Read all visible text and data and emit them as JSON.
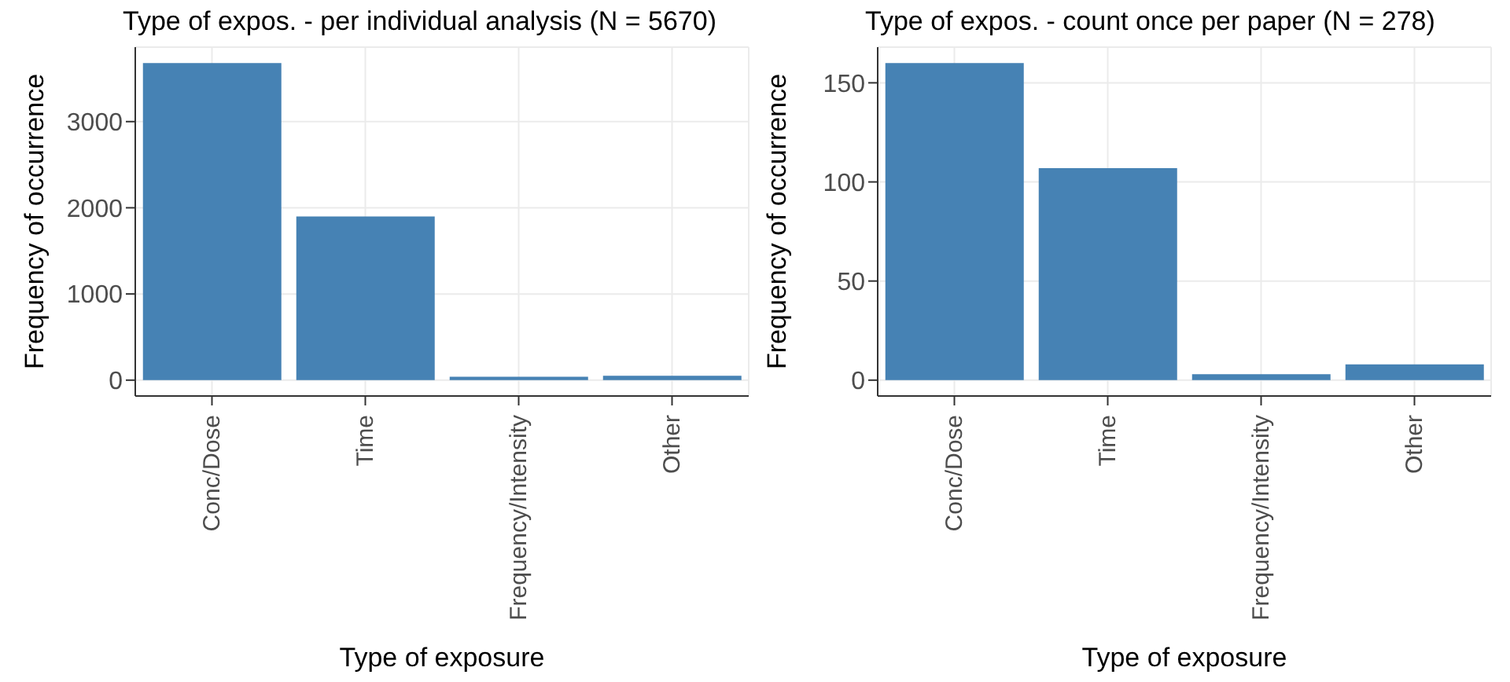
{
  "chart_data": [
    {
      "type": "bar",
      "title": "Type of expos. - per individual analysis (N = 5670)",
      "xlabel": "Type of exposure",
      "ylabel": "Frequency of occurrence",
      "categories": [
        "Conc/Dose",
        "Time",
        "Frequency/Intensity",
        "Other"
      ],
      "values": [
        3680,
        1900,
        40,
        50
      ],
      "color": "#4682b4",
      "ylim": [
        -184,
        3864
      ],
      "yticks": [
        0,
        1000,
        2000,
        3000
      ],
      "grid": true
    },
    {
      "type": "bar",
      "title": "Type of expos. - count once per paper (N = 278)",
      "xlabel": "Type of exposure",
      "ylabel": "Frequency of occurrence",
      "categories": [
        "Conc/Dose",
        "Time",
        "Frequency/Intensity",
        "Other"
      ],
      "values": [
        160,
        107,
        3,
        8
      ],
      "color": "#4682b4",
      "ylim": [
        -8,
        168
      ],
      "yticks": [
        0,
        50,
        100,
        150
      ],
      "grid": true
    }
  ]
}
